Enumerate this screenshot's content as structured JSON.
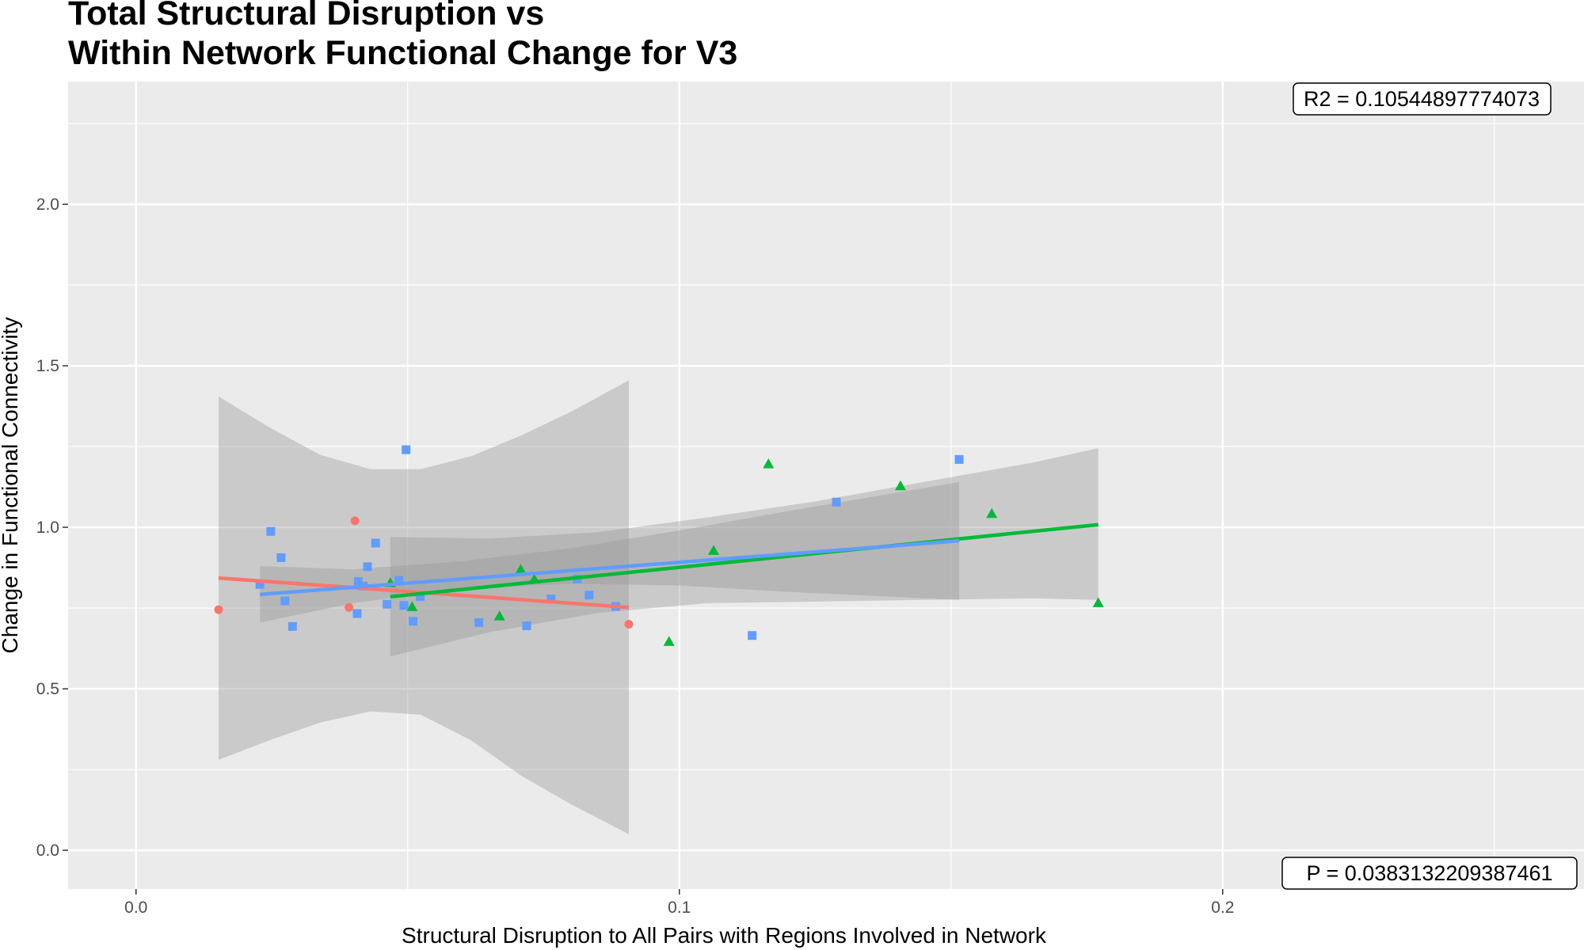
{
  "chart_data": {
    "type": "scatter",
    "title_lines": [
      "Total Structural Disruption vs",
      "Within Network Functional Change for V3"
    ],
    "xlabel": "Structural Disruption to All Pairs with Regions Involved in Network",
    "ylabel": "Change in Functional Connectivity",
    "xlim": [
      -0.0125,
      0.2665
    ],
    "ylim": [
      -0.12,
      2.38
    ],
    "x_ticks": [
      {
        "value": 0.0,
        "label": "0.0"
      },
      {
        "value": 0.1,
        "label": "0.1"
      },
      {
        "value": 0.2,
        "label": "0.2"
      }
    ],
    "y_ticks": [
      {
        "value": 0.0,
        "label": "0.0"
      },
      {
        "value": 0.5,
        "label": "0.5"
      },
      {
        "value": 1.0,
        "label": "1.0"
      },
      {
        "value": 1.5,
        "label": "1.5"
      },
      {
        "value": 2.0,
        "label": "2.0"
      }
    ],
    "grid": true,
    "legend": "none",
    "annotations": [
      {
        "text": "R2 =  0.10544897774073",
        "position": "top-right"
      },
      {
        "text": "P =  0.0383132209387461",
        "position": "bottom-right"
      }
    ],
    "series": [
      {
        "color": "#F8766D",
        "shape": "circle",
        "x": [
          0.0152,
          0.0392,
          0.0403,
          0.0907
        ],
        "y": [
          0.745,
          0.752,
          1.02,
          0.7
        ],
        "fit": {
          "x": [
            0.0152,
            0.0907
          ],
          "y": [
            0.843,
            0.752
          ]
        },
        "band": {
          "x": [
            0.0152,
            0.0245,
            0.0338,
            0.0431,
            0.0524,
            0.0617,
            0.071,
            0.0803,
            0.0907
          ],
          "lower": [
            0.28,
            0.34,
            0.395,
            0.43,
            0.42,
            0.34,
            0.23,
            0.14,
            0.05
          ],
          "upper": [
            1.405,
            1.31,
            1.225,
            1.18,
            1.18,
            1.22,
            1.285,
            1.36,
            1.455
          ]
        }
      },
      {
        "color": "#00BA38",
        "shape": "triangle",
        "x": [
          0.0468,
          0.0508,
          0.0669,
          0.0708,
          0.0733,
          0.0981,
          0.1063,
          0.1164,
          0.1407,
          0.1575,
          0.1771
        ],
        "y": [
          0.827,
          0.753,
          0.724,
          0.868,
          0.838,
          0.645,
          0.927,
          1.195,
          1.127,
          1.041,
          0.765
        ],
        "fit": {
          "x": [
            0.0468,
            0.1771
          ],
          "y": [
            0.785,
            1.008
          ]
        },
        "band": {
          "x": [
            0.0468,
            0.065,
            0.085,
            0.105,
            0.125,
            0.145,
            0.165,
            0.1771
          ],
          "lower": [
            0.6,
            0.675,
            0.735,
            0.765,
            0.77,
            0.775,
            0.78,
            0.775
          ],
          "upper": [
            0.97,
            0.965,
            0.985,
            1.03,
            1.08,
            1.14,
            1.2,
            1.245
          ]
        }
      },
      {
        "color": "#619CFF",
        "shape": "square",
        "x": [
          0.0228,
          0.0248,
          0.0267,
          0.0274,
          0.0288,
          0.0407,
          0.0409,
          0.0418,
          0.0426,
          0.0441,
          0.0462,
          0.0484,
          0.0493,
          0.0497,
          0.051,
          0.0523,
          0.0631,
          0.0719,
          0.0764,
          0.0812,
          0.0834,
          0.0883,
          0.1134,
          0.1289,
          0.1515
        ],
        "y": [
          0.823,
          0.987,
          0.906,
          0.772,
          0.693,
          0.733,
          0.832,
          0.818,
          0.878,
          0.951,
          0.762,
          0.836,
          0.758,
          1.24,
          0.709,
          0.785,
          0.705,
          0.695,
          0.778,
          0.84,
          0.79,
          0.755,
          0.665,
          1.078,
          1.21
        ],
        "fit": {
          "x": [
            0.0228,
            0.1515
          ],
          "y": [
            0.792,
            0.958
          ]
        },
        "band": {
          "x": [
            0.0228,
            0.04,
            0.06,
            0.08,
            0.1,
            0.12,
            0.1515
          ],
          "lower": [
            0.705,
            0.765,
            0.81,
            0.825,
            0.82,
            0.8,
            0.775
          ],
          "upper": [
            0.88,
            0.87,
            0.895,
            0.935,
            0.99,
            1.05,
            1.14
          ]
        }
      }
    ]
  }
}
